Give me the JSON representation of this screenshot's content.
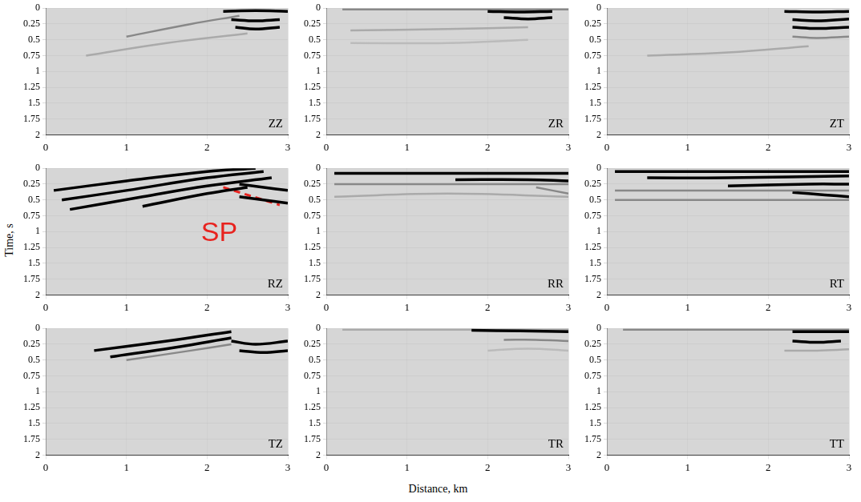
{
  "xlabel": "Distance, km",
  "ylabel": "Time, s",
  "chart_data": [
    {
      "type": "line",
      "title": "ZZ",
      "xlim": [
        0,
        3
      ],
      "xticks": [
        0,
        1,
        2,
        3
      ],
      "ylim": [
        0,
        2
      ],
      "yticks": [
        0,
        0.25,
        0.5,
        0.75,
        1,
        1.25,
        1.5,
        1.75,
        2
      ],
      "grid": true,
      "series": [
        {
          "color": "#000000",
          "x": [
            2.2,
            2.6,
            3.0
          ],
          "values": [
            0.05,
            0.04,
            0.05
          ]
        },
        {
          "color": "#000000",
          "x": [
            2.3,
            2.6,
            2.9
          ],
          "values": [
            0.18,
            0.2,
            0.18
          ]
        },
        {
          "color": "#000000",
          "x": [
            2.35,
            2.6,
            2.9
          ],
          "values": [
            0.3,
            0.33,
            0.3
          ]
        },
        {
          "color": "#888888",
          "x": [
            1.0,
            1.8,
            2.4
          ],
          "values": [
            0.45,
            0.25,
            0.12
          ]
        },
        {
          "color": "#aaaaaa",
          "x": [
            0.5,
            1.5,
            2.5
          ],
          "values": [
            0.75,
            0.55,
            0.4
          ]
        }
      ]
    },
    {
      "type": "line",
      "title": "ZR",
      "xlim": [
        0,
        3
      ],
      "xticks": [
        0,
        1,
        2,
        3
      ],
      "ylim": [
        0,
        2
      ],
      "yticks": [
        0,
        0.25,
        0.5,
        0.75,
        1,
        1.25,
        1.5,
        1.75,
        2
      ],
      "grid": true,
      "series": [
        {
          "color": "#000000",
          "x": [
            2.0,
            2.4,
            2.8
          ],
          "values": [
            0.05,
            0.06,
            0.05
          ]
        },
        {
          "color": "#000000",
          "x": [
            2.2,
            2.5,
            2.8
          ],
          "values": [
            0.15,
            0.17,
            0.15
          ]
        },
        {
          "color": "#888888",
          "x": [
            0.2,
            1.5,
            3.0
          ],
          "values": [
            0.02,
            0.02,
            0.02
          ]
        },
        {
          "color": "#aaaaaa",
          "x": [
            0.3,
            1.5,
            2.5
          ],
          "values": [
            0.35,
            0.33,
            0.3
          ]
        },
        {
          "color": "#bbbbbb",
          "x": [
            0.3,
            1.5,
            2.5
          ],
          "values": [
            0.55,
            0.55,
            0.5
          ]
        }
      ]
    },
    {
      "type": "line",
      "title": "ZT",
      "xlim": [
        0,
        3
      ],
      "xticks": [
        0,
        1,
        2,
        3
      ],
      "ylim": [
        0,
        2
      ],
      "yticks": [
        0,
        0.25,
        0.5,
        0.75,
        1,
        1.25,
        1.5,
        1.75,
        2
      ],
      "grid": true,
      "series": [
        {
          "color": "#000000",
          "x": [
            2.2,
            2.6,
            3.0
          ],
          "values": [
            0.05,
            0.06,
            0.05
          ]
        },
        {
          "color": "#000000",
          "x": [
            2.3,
            2.6,
            3.0
          ],
          "values": [
            0.18,
            0.2,
            0.17
          ]
        },
        {
          "color": "#000000",
          "x": [
            2.3,
            2.6,
            3.0
          ],
          "values": [
            0.3,
            0.32,
            0.3
          ]
        },
        {
          "color": "#888888",
          "x": [
            2.3,
            2.6,
            3.0
          ],
          "values": [
            0.45,
            0.47,
            0.45
          ]
        },
        {
          "color": "#aaaaaa",
          "x": [
            0.5,
            1.5,
            2.5
          ],
          "values": [
            0.75,
            0.7,
            0.6
          ]
        }
      ]
    },
    {
      "type": "line",
      "title": "RZ",
      "xlim": [
        0,
        3
      ],
      "xticks": [
        0,
        1,
        2,
        3
      ],
      "ylim": [
        0,
        2
      ],
      "yticks": [
        0,
        0.25,
        0.5,
        0.75,
        1,
        1.25,
        1.5,
        1.75,
        2
      ],
      "grid": true,
      "series": [
        {
          "color": "#000000",
          "x": [
            0.1,
            1.0,
            2.0,
            2.6
          ],
          "values": [
            0.35,
            0.2,
            0.05,
            0.0
          ]
        },
        {
          "color": "#000000",
          "x": [
            0.2,
            1.0,
            2.0,
            2.7
          ],
          "values": [
            0.5,
            0.35,
            0.15,
            0.05
          ]
        },
        {
          "color": "#000000",
          "x": [
            0.3,
            1.2,
            2.0,
            2.8
          ],
          "values": [
            0.65,
            0.45,
            0.28,
            0.15
          ]
        },
        {
          "color": "#000000",
          "x": [
            1.2,
            2.0,
            2.5
          ],
          "values": [
            0.6,
            0.4,
            0.3
          ]
        },
        {
          "color": "#000000",
          "x": [
            2.4,
            2.7,
            3.0
          ],
          "values": [
            0.25,
            0.3,
            0.35
          ]
        },
        {
          "color": "#000000",
          "x": [
            2.4,
            2.7,
            3.0
          ],
          "values": [
            0.45,
            0.5,
            0.55
          ]
        },
        {
          "color": "#e8231f",
          "line_style": "dashed",
          "x": [
            2.2,
            2.9
          ],
          "values": [
            0.3,
            0.58
          ]
        }
      ],
      "annotations": [
        {
          "text": "SP",
          "x": 2.15,
          "y": 1.03,
          "color": "#e8231f"
        }
      ]
    },
    {
      "type": "line",
      "title": "RR",
      "xlim": [
        0,
        3
      ],
      "xticks": [
        0,
        1,
        2,
        3
      ],
      "ylim": [
        0,
        2
      ],
      "yticks": [
        0,
        0.25,
        0.5,
        0.75,
        1,
        1.25,
        1.5,
        1.75,
        2
      ],
      "grid": true,
      "series": [
        {
          "color": "#000000",
          "x": [
            0.1,
            1.5,
            3.0
          ],
          "values": [
            0.08,
            0.08,
            0.08
          ]
        },
        {
          "color": "#000000",
          "x": [
            1.6,
            2.5,
            3.0
          ],
          "values": [
            0.18,
            0.18,
            0.2
          ]
        },
        {
          "color": "#888888",
          "x": [
            0.1,
            1.5,
            3.0
          ],
          "values": [
            0.25,
            0.25,
            0.25
          ]
        },
        {
          "color": "#888888",
          "x": [
            2.6,
            3.0
          ],
          "values": [
            0.3,
            0.4
          ]
        },
        {
          "color": "#aaaaaa",
          "x": [
            0.1,
            1.5,
            3.0
          ],
          "values": [
            0.45,
            0.4,
            0.45
          ]
        }
      ]
    },
    {
      "type": "line",
      "title": "RT",
      "xlim": [
        0,
        3
      ],
      "xticks": [
        0,
        1,
        2,
        3
      ],
      "ylim": [
        0,
        2
      ],
      "yticks": [
        0,
        0.25,
        0.5,
        0.75,
        1,
        1.25,
        1.5,
        1.75,
        2
      ],
      "grid": true,
      "series": [
        {
          "color": "#000000",
          "x": [
            0.1,
            1.5,
            3.0
          ],
          "values": [
            0.05,
            0.05,
            0.05
          ]
        },
        {
          "color": "#000000",
          "x": [
            0.5,
            1.5,
            3.0
          ],
          "values": [
            0.15,
            0.15,
            0.12
          ]
        },
        {
          "color": "#000000",
          "x": [
            1.5,
            2.5,
            3.0
          ],
          "values": [
            0.28,
            0.25,
            0.25
          ]
        },
        {
          "color": "#888888",
          "x": [
            0.1,
            1.5,
            3.0
          ],
          "values": [
            0.35,
            0.35,
            0.35
          ]
        },
        {
          "color": "#000000",
          "x": [
            2.3,
            2.7,
            3.0
          ],
          "values": [
            0.38,
            0.42,
            0.45
          ]
        },
        {
          "color": "#888888",
          "x": [
            0.1,
            1.5,
            3.0
          ],
          "values": [
            0.5,
            0.5,
            0.5
          ]
        }
      ]
    },
    {
      "type": "line",
      "title": "TZ",
      "xlim": [
        0,
        3
      ],
      "xticks": [
        0,
        1,
        2,
        3
      ],
      "ylim": [
        0,
        2
      ],
      "yticks": [
        0,
        0.25,
        0.5,
        0.75,
        1,
        1.25,
        1.5,
        1.75,
        2
      ],
      "grid": true,
      "series": [
        {
          "color": "#000000",
          "x": [
            0.6,
            1.5,
            2.3
          ],
          "values": [
            0.35,
            0.2,
            0.05
          ]
        },
        {
          "color": "#000000",
          "x": [
            0.8,
            1.6,
            2.3
          ],
          "values": [
            0.45,
            0.3,
            0.15
          ]
        },
        {
          "color": "#888888",
          "x": [
            1.0,
            1.8,
            2.3
          ],
          "values": [
            0.5,
            0.35,
            0.25
          ]
        },
        {
          "color": "#000000",
          "x": [
            2.3,
            2.6,
            3.0
          ],
          "values": [
            0.2,
            0.25,
            0.2
          ]
        },
        {
          "color": "#000000",
          "x": [
            2.4,
            2.7,
            3.0
          ],
          "values": [
            0.35,
            0.38,
            0.35
          ]
        }
      ]
    },
    {
      "type": "line",
      "title": "TR",
      "xlim": [
        0,
        3
      ],
      "xticks": [
        0,
        1,
        2,
        3
      ],
      "ylim": [
        0,
        2
      ],
      "yticks": [
        0,
        0.25,
        0.5,
        0.75,
        1,
        1.25,
        1.5,
        1.75,
        2
      ],
      "grid": true,
      "series": [
        {
          "color": "#000000",
          "x": [
            1.8,
            2.4,
            3.0
          ],
          "values": [
            0.03,
            0.04,
            0.05
          ]
        },
        {
          "color": "#888888",
          "x": [
            2.2,
            2.6,
            3.0
          ],
          "values": [
            0.18,
            0.18,
            0.2
          ]
        },
        {
          "color": "#aaaaaa",
          "x": [
            0.2,
            1.5,
            3.0
          ],
          "values": [
            0.02,
            0.02,
            0.02
          ]
        },
        {
          "color": "#bbbbbb",
          "x": [
            2.0,
            2.5,
            3.0
          ],
          "values": [
            0.35,
            0.32,
            0.35
          ]
        }
      ]
    },
    {
      "type": "line",
      "title": "TT",
      "xlim": [
        0,
        3
      ],
      "xticks": [
        0,
        1,
        2,
        3
      ],
      "ylim": [
        0,
        2
      ],
      "yticks": [
        0,
        0.25,
        0.5,
        0.75,
        1,
        1.25,
        1.5,
        1.75,
        2
      ],
      "grid": true,
      "series": [
        {
          "color": "#000000",
          "x": [
            2.3,
            2.6,
            3.0
          ],
          "values": [
            0.05,
            0.05,
            0.05
          ]
        },
        {
          "color": "#000000",
          "x": [
            2.3,
            2.6,
            2.9
          ],
          "values": [
            0.2,
            0.22,
            0.2
          ]
        },
        {
          "color": "#888888",
          "x": [
            0.2,
            1.5,
            3.0
          ],
          "values": [
            0.02,
            0.02,
            0.02
          ]
        },
        {
          "color": "#aaaaaa",
          "x": [
            2.2,
            2.6,
            3.0
          ],
          "values": [
            0.35,
            0.35,
            0.33
          ]
        }
      ]
    }
  ]
}
